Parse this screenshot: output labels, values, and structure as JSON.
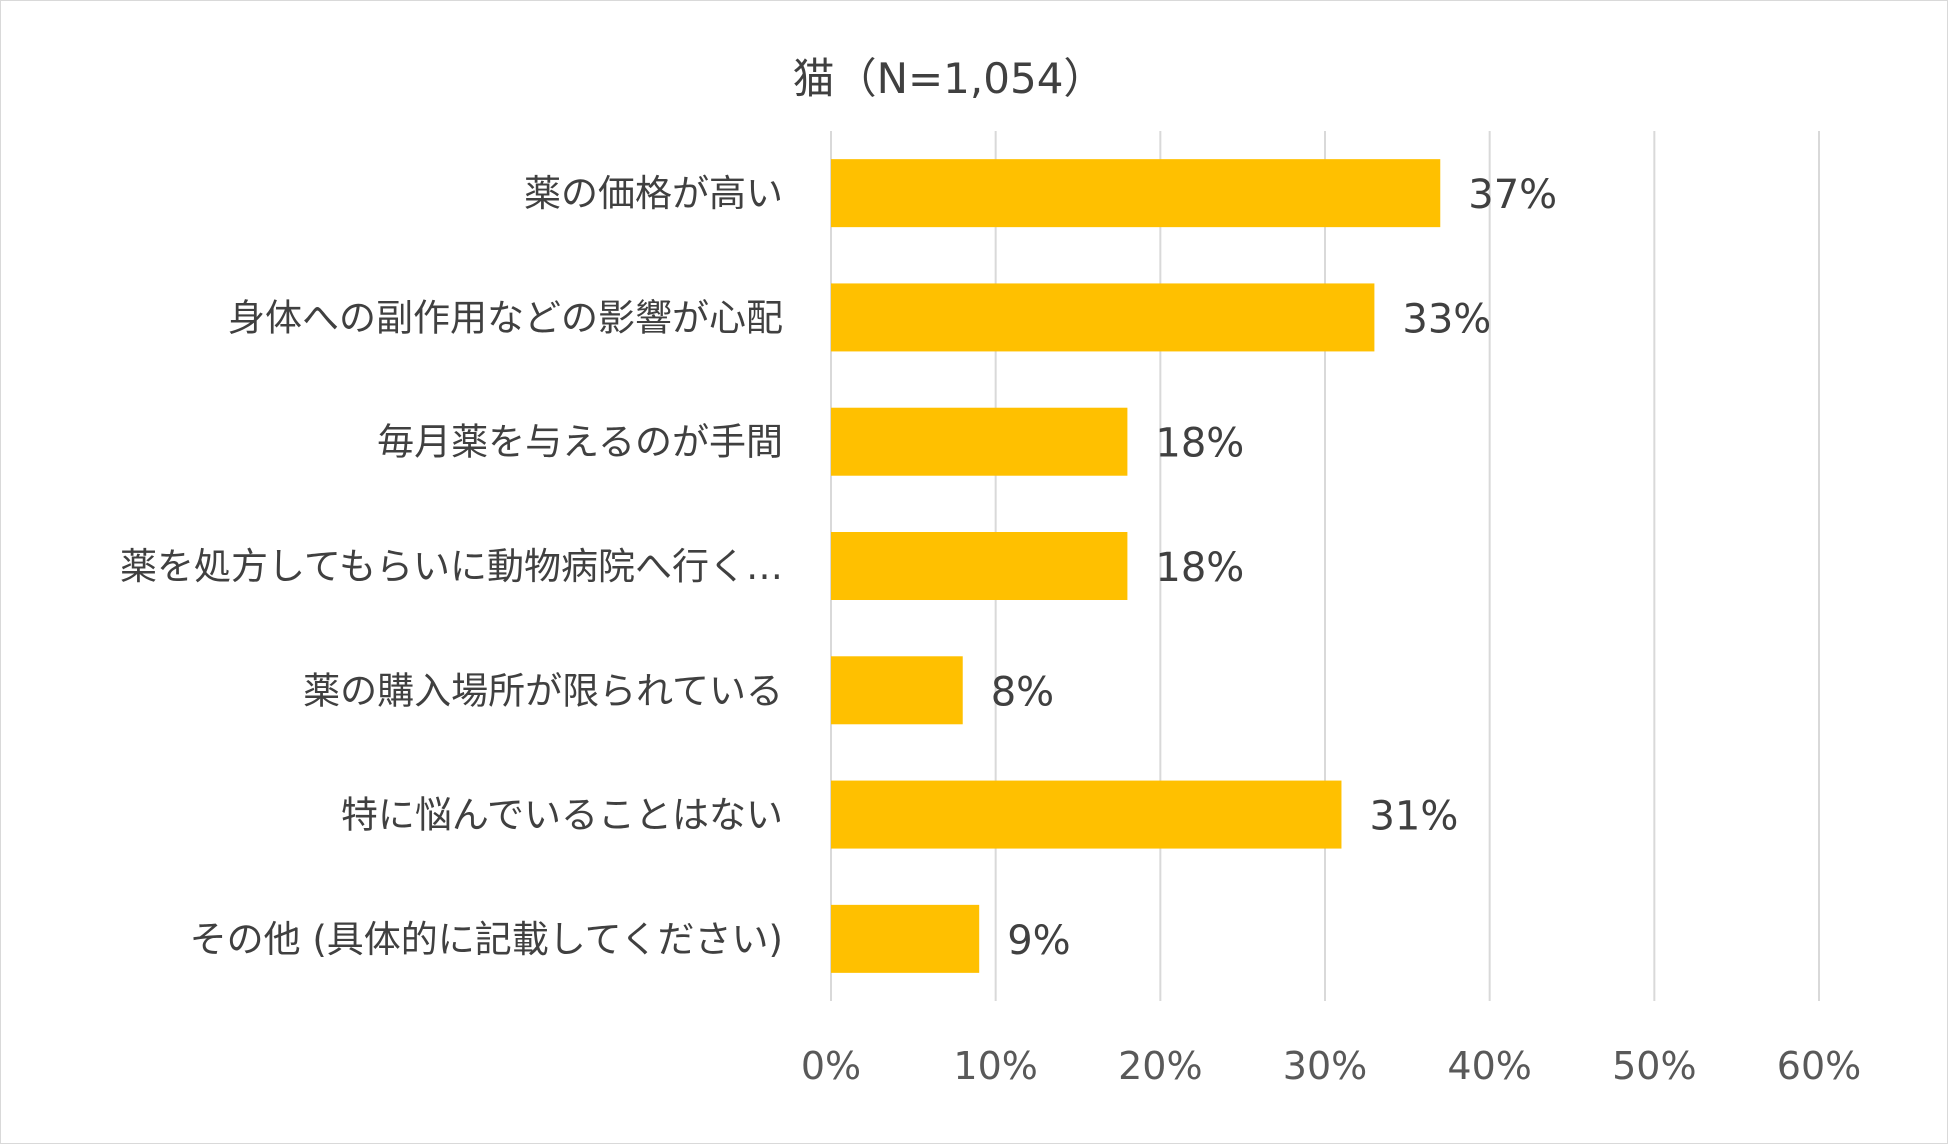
{
  "chart_data": {
    "type": "bar",
    "orientation": "horizontal",
    "title": "猫（N=1,054）",
    "categories": [
      "薬の価格が高い",
      "身体への副作用などの影響が心配",
      "毎月薬を与えるのが手間",
      "薬を処方してもらいに動物病院へ行く…",
      "薬の購入場所が限られている",
      "特に悩んでいることはない",
      "その他 (具体的に記載してください)"
    ],
    "values": [
      37,
      33,
      18,
      18,
      8,
      31,
      9
    ],
    "data_labels": [
      "37%",
      "33%",
      "18%",
      "18%",
      "8%",
      "31%",
      "9%"
    ],
    "xlim": [
      0,
      60
    ],
    "xticks": [
      0,
      10,
      20,
      30,
      40,
      50,
      60
    ],
    "tick_labels": [
      "0%",
      "10%",
      "20%",
      "30%",
      "40%",
      "50%",
      "60%"
    ],
    "bar_color": "#FFC000",
    "grid": true,
    "legend": "none"
  }
}
